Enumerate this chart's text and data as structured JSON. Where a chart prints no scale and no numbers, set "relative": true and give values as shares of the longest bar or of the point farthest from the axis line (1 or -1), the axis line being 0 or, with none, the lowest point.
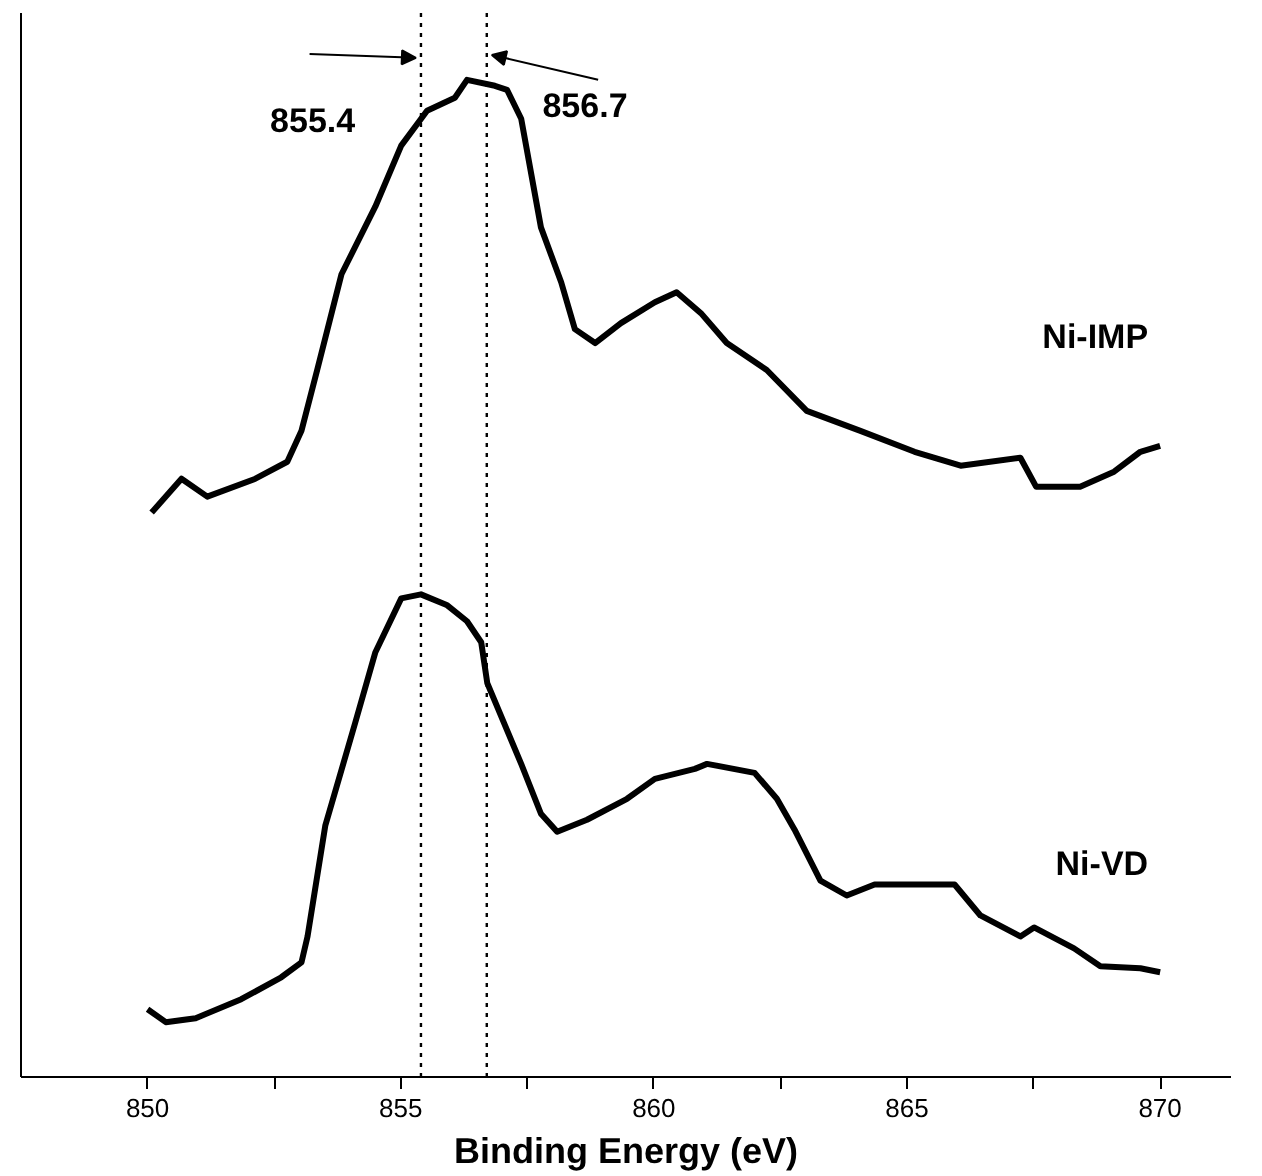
{
  "chart_data": {
    "type": "line",
    "xlabel": "Binding Energy (eV)",
    "relative": true,
    "xlim": [
      847.5,
      871.4
    ],
    "xticks": [
      850,
      {
        "value": 852.5,
        "label": null
      },
      855,
      {
        "value": 857.5,
        "label": null
      },
      860,
      {
        "value": 862.5,
        "label": null
      },
      865,
      {
        "value": 867.5,
        "label": null
      },
      870
    ],
    "grid": false,
    "legend": false,
    "marker": "none",
    "line_style": "solid",
    "ref_lines": [
      {
        "axis": "x",
        "value": 855.4,
        "label": "855.4",
        "line_style": "dotted",
        "color": "#000000"
      },
      {
        "axis": "x",
        "value": 856.7,
        "label": "856.7",
        "line_style": "dotted",
        "color": "#000000"
      }
    ],
    "series": [
      {
        "name": "Ni-IMP",
        "color": "#000000",
        "x": [
          850.08,
          850.67,
          851.18,
          852.13,
          852.76,
          853.04,
          853.35,
          853.83,
          854.5,
          855.01,
          855.52,
          856.07,
          856.31,
          856.86,
          857.1,
          857.38,
          857.77,
          858.17,
          858.44,
          858.84,
          859.35,
          860.02,
          860.45,
          860.93,
          861.44,
          862.23,
          863.02,
          864.08,
          865.15,
          866.06,
          867.24,
          867.55,
          868.42,
          869.09,
          869.61,
          870.0
        ],
        "values": [
          0.566,
          0.6,
          0.582,
          0.6,
          0.617,
          0.648,
          0.709,
          0.805,
          0.873,
          0.934,
          0.969,
          0.982,
          1.0,
          0.994,
          0.99,
          0.961,
          0.852,
          0.797,
          0.75,
          0.736,
          0.756,
          0.777,
          0.787,
          0.766,
          0.736,
          0.709,
          0.668,
          0.648,
          0.627,
          0.613,
          0.621,
          0.592,
          0.592,
          0.607,
          0.627,
          0.633
        ]
      },
      {
        "name": "Ni-VD",
        "color": "#000000",
        "x": [
          850.0,
          850.36,
          850.95,
          851.85,
          852.64,
          853.04,
          853.16,
          853.51,
          854.1,
          854.5,
          855.01,
          855.4,
          855.92,
          856.31,
          856.59,
          856.71,
          857.38,
          857.77,
          858.09,
          858.68,
          859.47,
          860.02,
          860.81,
          861.05,
          861.99,
          862.43,
          862.78,
          863.29,
          863.81,
          864.36,
          865.38,
          865.94,
          866.45,
          867.24,
          867.51,
          868.3,
          868.82,
          869.61,
          870.0
        ],
        "values": [
          0.068,
          0.055,
          0.059,
          0.078,
          0.1,
          0.115,
          0.141,
          0.252,
          0.355,
          0.426,
          0.48,
          0.484,
          0.473,
          0.457,
          0.436,
          0.395,
          0.314,
          0.264,
          0.246,
          0.258,
          0.279,
          0.299,
          0.309,
          0.314,
          0.305,
          0.279,
          0.248,
          0.197,
          0.182,
          0.193,
          0.193,
          0.193,
          0.162,
          0.141,
          0.15,
          0.129,
          0.111,
          0.109,
          0.105
        ]
      }
    ]
  }
}
